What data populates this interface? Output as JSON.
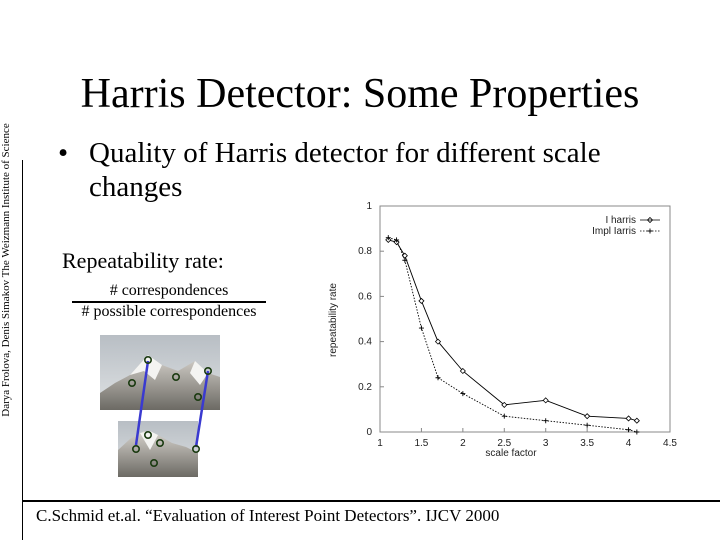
{
  "slide": {
    "title": "Harris Detector: Some Properties",
    "credit": "Darya Frolova, Denis Simakov The Weizmann Institute of Science",
    "bullet": "Quality of Harris detector for different scale changes",
    "repeatability_label": "Repeatability rate:",
    "fraction_numerator": "# correspondences",
    "fraction_denominator": "# possible correspondences",
    "citation": "C.Schmid et.al. “Evaluation of Interest Point Detectors”. IJCV 2000"
  },
  "colors": {
    "arrow": "#3a3ad0",
    "point": "#1a3a10",
    "line": "#000000"
  },
  "chart_data": {
    "type": "line",
    "xlabel": "scale factor",
    "ylabel": "repeatability rate",
    "xlim": [
      1,
      4.5
    ],
    "ylim": [
      0,
      1
    ],
    "xticks": [
      1,
      1.5,
      2,
      2.5,
      3,
      3.5,
      4,
      4.5
    ],
    "xtick_labels": [
      "1",
      "1.5",
      "2",
      "2.5",
      "3",
      "3.5",
      "4",
      "4.5"
    ],
    "yticks": [
      0,
      0.2,
      0.4,
      0.6,
      0.8,
      1
    ],
    "ytick_labels": [
      "0",
      "0.2",
      "0.4",
      "0.6",
      "0.8",
      "1"
    ],
    "legend_position": "top-right",
    "series": [
      {
        "name": "I harris",
        "marker": "diamond",
        "x": [
          1.1,
          1.2,
          1.3,
          1.5,
          1.7,
          2.0,
          2.5,
          3.0,
          3.5,
          4.0,
          4.1
        ],
        "y": [
          0.85,
          0.84,
          0.78,
          0.58,
          0.4,
          0.27,
          0.12,
          0.14,
          0.07,
          0.06,
          0.05
        ]
      },
      {
        "name": "Impl Iarris",
        "marker": "plus",
        "x": [
          1.1,
          1.2,
          1.3,
          1.5,
          1.7,
          2.0,
          2.5,
          3.0,
          3.5,
          4.0,
          4.1
        ],
        "y": [
          0.86,
          0.85,
          0.76,
          0.46,
          0.24,
          0.17,
          0.07,
          0.05,
          0.03,
          0.01,
          0.0
        ]
      }
    ]
  }
}
